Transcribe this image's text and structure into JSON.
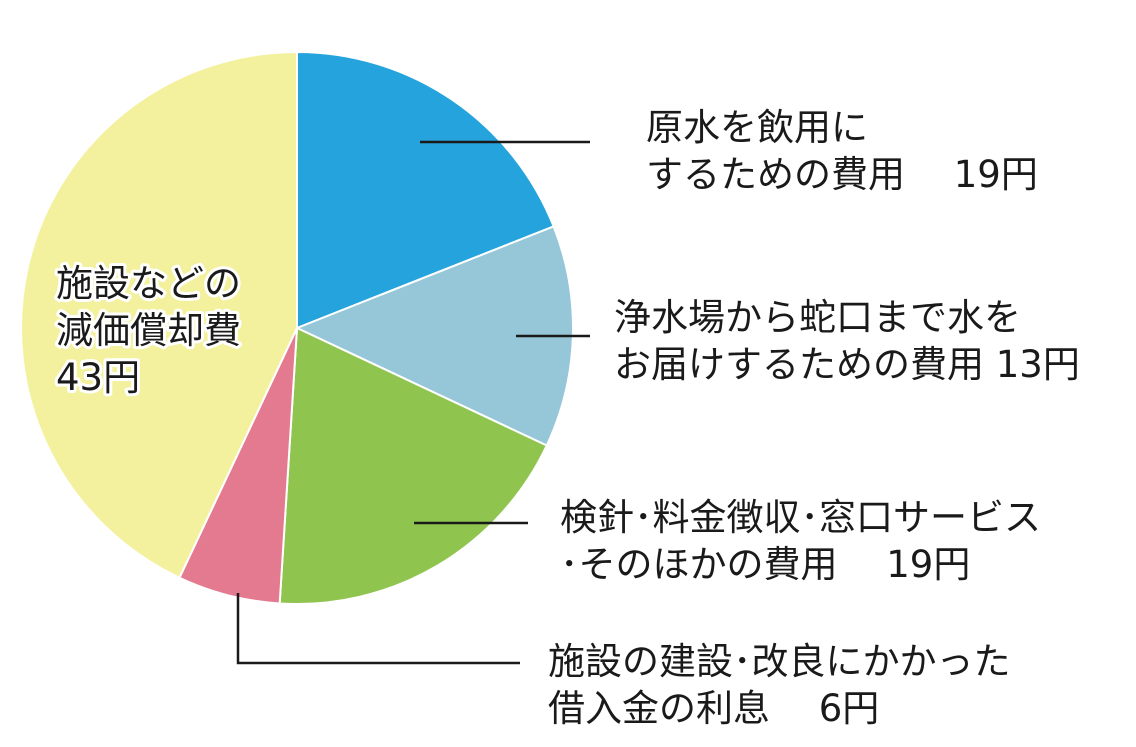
{
  "chart_data": {
    "type": "pie",
    "slices": [
      {
        "id": "raw-water",
        "lines": [
          "原水を飲用に",
          "するための費用　 19円"
        ],
        "value": 19,
        "color": "#25a3dd"
      },
      {
        "id": "delivery",
        "lines": [
          "浄水場から蛇口まで水を",
          "お届けするための費用 13円"
        ],
        "value": 13,
        "color": "#96c7d8"
      },
      {
        "id": "meter-service",
        "lines": [
          "検針･料金徴収･窓口サービス",
          "･そのほかの費用　 19円"
        ],
        "value": 19,
        "color": "#8fc44f"
      },
      {
        "id": "interest",
        "lines": [
          "施設の建設･改良にかかった",
          "借入金の利息　 6円"
        ],
        "value": 6,
        "color": "#e47a8f"
      },
      {
        "id": "depreciation",
        "lines": [
          "施設などの",
          "減価償却費",
          "43円"
        ],
        "value": 43,
        "color": "#f3f19e"
      }
    ]
  }
}
